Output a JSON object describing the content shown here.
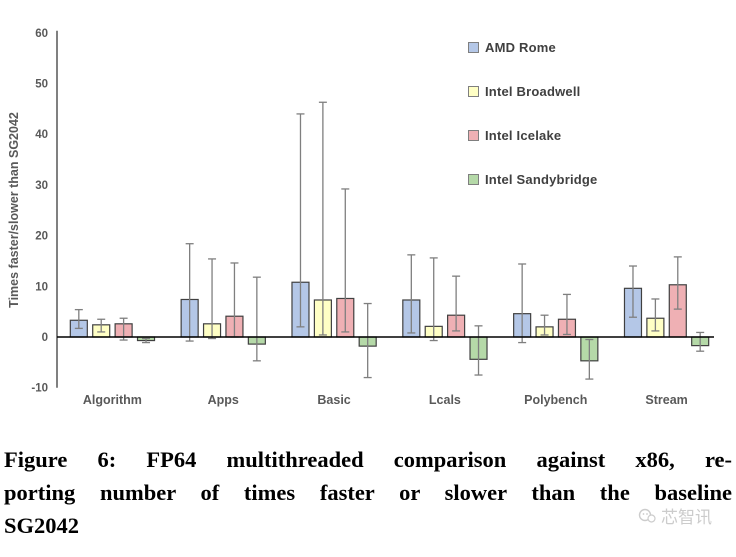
{
  "figure": {
    "caption_lines": [
      "Figure 6: FP64 multithreaded comparison against x86, re-",
      "porting number of times faster or slower than the baseline",
      "SG2042"
    ],
    "watermark": "芯智讯"
  },
  "chart_data": {
    "type": "bar",
    "title": "",
    "xlabel": "",
    "ylabel": "Times faster/slower than SG2042",
    "ylim": [
      -10,
      60
    ],
    "yticks": [
      60,
      50,
      40,
      30,
      20,
      10,
      0,
      -10
    ],
    "grid": false,
    "legend_position": "top-right",
    "categories": [
      "Algorithm",
      "Apps",
      "Basic",
      "Lcals",
      "Polybench",
      "Stream"
    ],
    "series": [
      {
        "name": "AMD Rome",
        "color": "#B4C7E7",
        "values": [
          3.3,
          7.4,
          10.8,
          7.3,
          4.6,
          9.6
        ],
        "err_low": [
          1.7,
          -0.8,
          2.0,
          0.8,
          -1.1,
          3.9
        ],
        "err_high": [
          5.4,
          18.4,
          44.0,
          16.2,
          14.4,
          14.0
        ]
      },
      {
        "name": "Intel Broadwell",
        "color": "#FFFFC5",
        "values": [
          2.4,
          2.6,
          7.3,
          2.1,
          2.0,
          3.7
        ],
        "err_low": [
          1.0,
          -0.3,
          0.4,
          -0.7,
          0.4,
          1.2
        ],
        "err_high": [
          3.5,
          15.4,
          46.3,
          15.6,
          4.3,
          7.5
        ]
      },
      {
        "name": "Intel Icelake",
        "color": "#EFB0B4",
        "values": [
          2.6,
          4.1,
          7.6,
          4.3,
          3.5,
          10.3
        ],
        "err_low": [
          -0.6,
          0.0,
          1.0,
          1.2,
          0.5,
          5.5
        ],
        "err_high": [
          3.7,
          14.6,
          29.2,
          12.0,
          8.4,
          15.8
        ]
      },
      {
        "name": "Intel Sandybridge",
        "color": "#B5D9A8",
        "values": [
          -0.7,
          -1.4,
          -1.8,
          -4.4,
          -4.7,
          -1.7
        ],
        "err_low": [
          -1.1,
          -4.7,
          -8.0,
          -7.5,
          -8.3,
          -2.8
        ],
        "err_high": [
          -0.3,
          11.8,
          6.6,
          2.2,
          -0.5,
          0.9
        ]
      }
    ],
    "style": {
      "bar_outline": "#404040",
      "error_bar_color": "#7f7f7f",
      "axis_color": "#808080",
      "zero_line_color": "#000000",
      "tick_label_color": "#595959",
      "category_label_color": "#595959"
    }
  }
}
